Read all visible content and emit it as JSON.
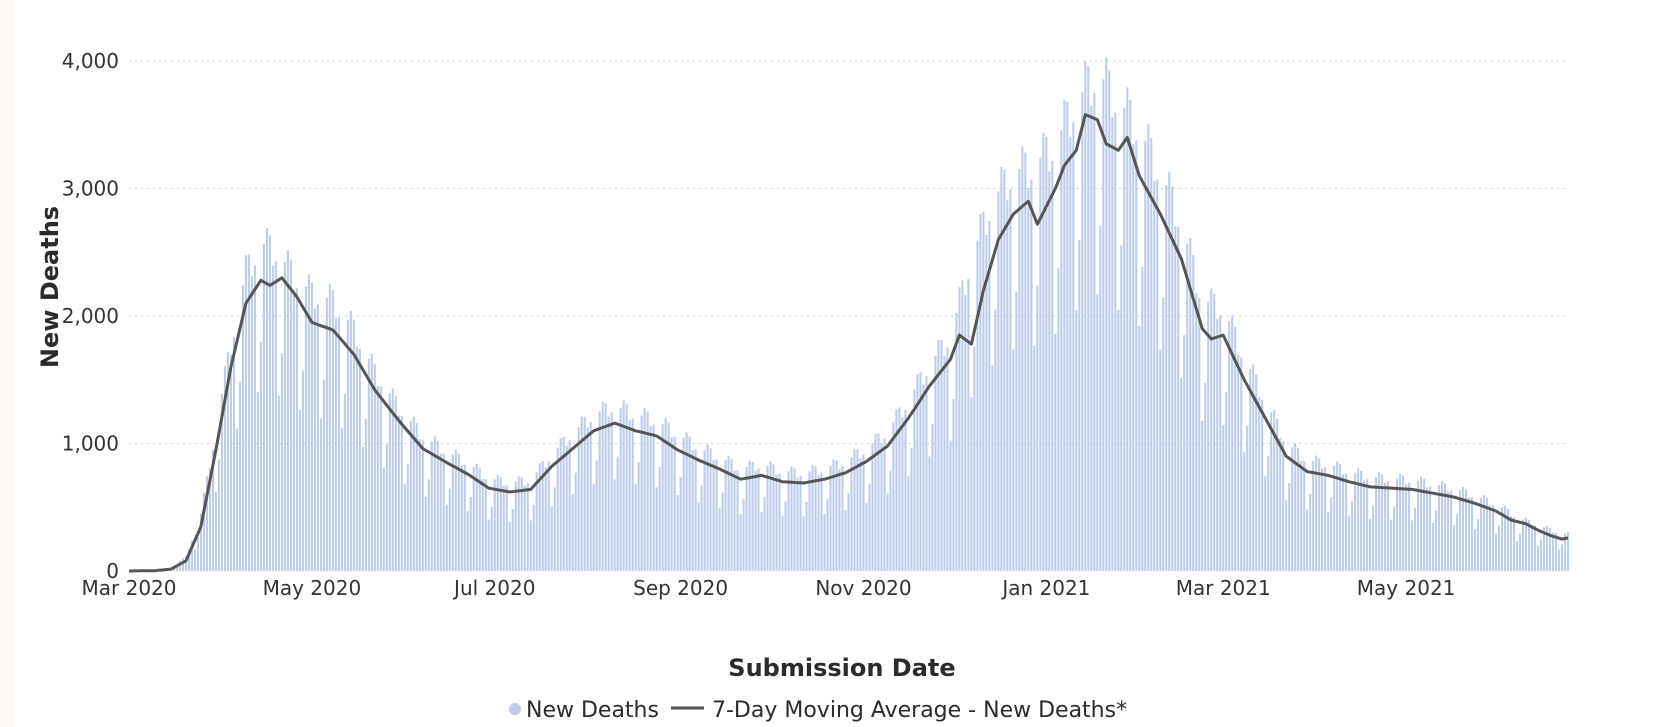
{
  "chart_data": {
    "type": "bar",
    "xlabel": "Submission Date",
    "ylabel": "New Deaths",
    "x_start": "2020-03-01",
    "x_end": "2021-06-24",
    "ylim": [
      0,
      4400
    ],
    "y_ticks": [
      0,
      1000,
      2000,
      3000,
      4000
    ],
    "y_tick_labels": [
      "0",
      "1,000",
      "2,000",
      "3,000",
      "4,000"
    ],
    "x_ticks": [
      "2020-03-01",
      "2020-05-01",
      "2020-07-01",
      "2020-09-01",
      "2020-11-01",
      "2021-01-01",
      "2021-03-01",
      "2021-05-01"
    ],
    "x_tick_labels": [
      "Mar 2020",
      "May 2020",
      "Jul 2020",
      "Sep 2020",
      "Nov 2020",
      "Jan 2021",
      "Mar 2021",
      "May 2021"
    ],
    "grid": "horizontal dotted",
    "legend_position": "bottom",
    "series": [
      {
        "name": "New Deaths",
        "kind": "bar",
        "color": "#bccde9",
        "points": [
          [
            "2020-03-01",
            0
          ],
          [
            "2020-03-10",
            5
          ],
          [
            "2020-03-15",
            25
          ],
          [
            "2020-03-20",
            100
          ],
          [
            "2020-03-25",
            400
          ],
          [
            "2020-03-30",
            1000
          ],
          [
            "2020-04-04",
            1600
          ],
          [
            "2020-04-09",
            2100
          ],
          [
            "2020-04-14",
            2300
          ],
          [
            "2020-04-19",
            2250
          ],
          [
            "2020-04-24",
            2100
          ],
          [
            "2020-05-01",
            1950
          ],
          [
            "2020-05-08",
            1900
          ],
          [
            "2020-05-15",
            1700
          ],
          [
            "2020-05-22",
            1400
          ],
          [
            "2020-05-30",
            1150
          ],
          [
            "2020-06-07",
            950
          ],
          [
            "2020-06-15",
            840
          ],
          [
            "2020-06-22",
            760
          ],
          [
            "2020-06-29",
            650
          ],
          [
            "2020-07-06",
            620
          ],
          [
            "2020-07-13",
            640
          ],
          [
            "2020-07-20",
            820
          ],
          [
            "2020-07-27",
            970
          ],
          [
            "2020-08-03",
            1100
          ],
          [
            "2020-08-10",
            1160
          ],
          [
            "2020-08-17",
            1100
          ],
          [
            "2020-08-24",
            1060
          ],
          [
            "2020-08-31",
            960
          ],
          [
            "2020-09-07",
            870
          ],
          [
            "2020-09-14",
            800
          ],
          [
            "2020-09-21",
            720
          ],
          [
            "2020-09-28",
            750
          ],
          [
            "2020-10-05",
            700
          ],
          [
            "2020-10-12",
            690
          ],
          [
            "2020-10-19",
            720
          ],
          [
            "2020-10-26",
            770
          ],
          [
            "2020-11-02",
            860
          ],
          [
            "2020-11-09",
            980
          ],
          [
            "2020-11-16",
            1200
          ],
          [
            "2020-11-23",
            1450
          ],
          [
            "2020-11-30",
            1650
          ],
          [
            "2020-12-07",
            2200
          ],
          [
            "2020-12-14",
            2600
          ],
          [
            "2020-12-21",
            2800
          ],
          [
            "2020-12-28",
            2850
          ],
          [
            "2021-01-04",
            3000
          ],
          [
            "2021-01-11",
            3300
          ],
          [
            "2021-01-18",
            3500
          ],
          [
            "2021-01-25",
            3300
          ],
          [
            "2021-02-01",
            3100
          ],
          [
            "2021-02-08",
            2800
          ],
          [
            "2021-02-15",
            2450
          ],
          [
            "2021-02-22",
            1900
          ],
          [
            "2021-03-01",
            1850
          ],
          [
            "2021-03-08",
            1500
          ],
          [
            "2021-03-15",
            1200
          ],
          [
            "2021-03-22",
            900
          ],
          [
            "2021-03-29",
            780
          ],
          [
            "2021-04-05",
            750
          ],
          [
            "2021-04-12",
            700
          ],
          [
            "2021-04-19",
            660
          ],
          [
            "2021-04-26",
            650
          ],
          [
            "2021-05-03",
            640
          ],
          [
            "2021-05-10",
            610
          ],
          [
            "2021-05-17",
            580
          ],
          [
            "2021-05-24",
            530
          ],
          [
            "2021-05-31",
            470
          ],
          [
            "2021-06-07",
            380
          ],
          [
            "2021-06-14",
            320
          ],
          [
            "2021-06-21",
            270
          ],
          [
            "2021-06-24",
            260
          ]
        ]
      },
      {
        "name": "7-Day Moving Average - New Deaths*",
        "kind": "line",
        "color": "#555555",
        "points": [
          [
            "2020-03-01",
            0
          ],
          [
            "2020-03-10",
            3
          ],
          [
            "2020-03-15",
            15
          ],
          [
            "2020-03-20",
            80
          ],
          [
            "2020-03-25",
            350
          ],
          [
            "2020-03-30",
            950
          ],
          [
            "2020-04-04",
            1600
          ],
          [
            "2020-04-09",
            2100
          ],
          [
            "2020-04-14",
            2280
          ],
          [
            "2020-04-17",
            2240
          ],
          [
            "2020-04-21",
            2300
          ],
          [
            "2020-04-26",
            2150
          ],
          [
            "2020-05-01",
            1950
          ],
          [
            "2020-05-08",
            1890
          ],
          [
            "2020-05-15",
            1700
          ],
          [
            "2020-05-22",
            1420
          ],
          [
            "2020-05-30",
            1180
          ],
          [
            "2020-06-07",
            960
          ],
          [
            "2020-06-15",
            850
          ],
          [
            "2020-06-22",
            760
          ],
          [
            "2020-06-29",
            650
          ],
          [
            "2020-07-06",
            620
          ],
          [
            "2020-07-13",
            640
          ],
          [
            "2020-07-20",
            820
          ],
          [
            "2020-07-27",
            960
          ],
          [
            "2020-08-03",
            1100
          ],
          [
            "2020-08-10",
            1160
          ],
          [
            "2020-08-17",
            1100
          ],
          [
            "2020-08-24",
            1060
          ],
          [
            "2020-08-31",
            950
          ],
          [
            "2020-09-07",
            870
          ],
          [
            "2020-09-14",
            800
          ],
          [
            "2020-09-21",
            720
          ],
          [
            "2020-09-28",
            750
          ],
          [
            "2020-10-05",
            700
          ],
          [
            "2020-10-12",
            690
          ],
          [
            "2020-10-19",
            720
          ],
          [
            "2020-10-26",
            770
          ],
          [
            "2020-11-02",
            860
          ],
          [
            "2020-11-09",
            980
          ],
          [
            "2020-11-16",
            1200
          ],
          [
            "2020-11-23",
            1450
          ],
          [
            "2020-11-30",
            1660
          ],
          [
            "2020-12-03",
            1850
          ],
          [
            "2020-12-07",
            1780
          ],
          [
            "2020-12-11",
            2200
          ],
          [
            "2020-12-16",
            2600
          ],
          [
            "2020-12-21",
            2800
          ],
          [
            "2020-12-26",
            2900
          ],
          [
            "2020-12-29",
            2720
          ],
          [
            "2021-01-04",
            3000
          ],
          [
            "2021-01-07",
            3180
          ],
          [
            "2021-01-11",
            3300
          ],
          [
            "2021-01-14",
            3580
          ],
          [
            "2021-01-18",
            3540
          ],
          [
            "2021-01-21",
            3350
          ],
          [
            "2021-01-25",
            3300
          ],
          [
            "2021-01-28",
            3400
          ],
          [
            "2021-02-01",
            3100
          ],
          [
            "2021-02-08",
            2800
          ],
          [
            "2021-02-15",
            2450
          ],
          [
            "2021-02-22",
            1900
          ],
          [
            "2021-02-25",
            1820
          ],
          [
            "2021-03-01",
            1850
          ],
          [
            "2021-03-08",
            1500
          ],
          [
            "2021-03-15",
            1200
          ],
          [
            "2021-03-22",
            900
          ],
          [
            "2021-03-29",
            780
          ],
          [
            "2021-04-05",
            750
          ],
          [
            "2021-04-12",
            700
          ],
          [
            "2021-04-19",
            660
          ],
          [
            "2021-04-26",
            650
          ],
          [
            "2021-05-03",
            640
          ],
          [
            "2021-05-10",
            610
          ],
          [
            "2021-05-17",
            580
          ],
          [
            "2021-05-24",
            530
          ],
          [
            "2021-05-31",
            470
          ],
          [
            "2021-06-05",
            400
          ],
          [
            "2021-06-10",
            370
          ],
          [
            "2021-06-14",
            320
          ],
          [
            "2021-06-18",
            280
          ],
          [
            "2021-06-22",
            250
          ],
          [
            "2021-06-24",
            260
          ]
        ]
      }
    ]
  }
}
